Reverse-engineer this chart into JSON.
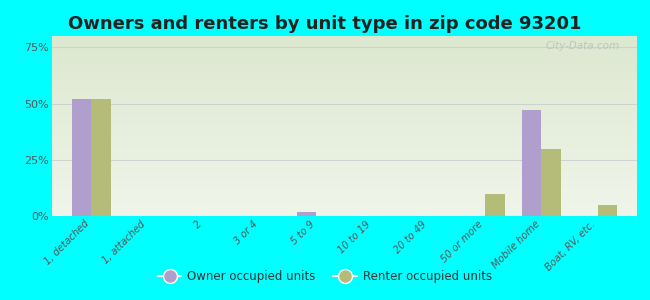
{
  "title": "Owners and renters by unit type in zip code 93201",
  "categories": [
    "1, detached",
    "1, attached",
    "2",
    "3 or 4",
    "5 to 9",
    "10 to 19",
    "20 to 49",
    "50 or more",
    "Mobile home",
    "Boat, RV, etc."
  ],
  "owner_values": [
    52,
    0,
    0,
    0,
    2,
    0,
    0,
    0,
    47,
    0
  ],
  "renter_values": [
    52,
    0,
    0,
    0,
    0,
    0,
    0,
    10,
    30,
    5
  ],
  "owner_color": "#b09fcc",
  "renter_color": "#b5bc7a",
  "background_color": "#00FFFF",
  "plot_bg_top": "#dce8d0",
  "plot_bg_bottom": "#f0f5ea",
  "ylabel_ticks": [
    "0%",
    "25%",
    "50%",
    "75%"
  ],
  "ytick_values": [
    0,
    25,
    50,
    75
  ],
  "ylim": [
    0,
    80
  ],
  "legend_owner": "Owner occupied units",
  "legend_renter": "Renter occupied units",
  "title_fontsize": 13,
  "bar_width": 0.35,
  "watermark": "City-Data.com"
}
